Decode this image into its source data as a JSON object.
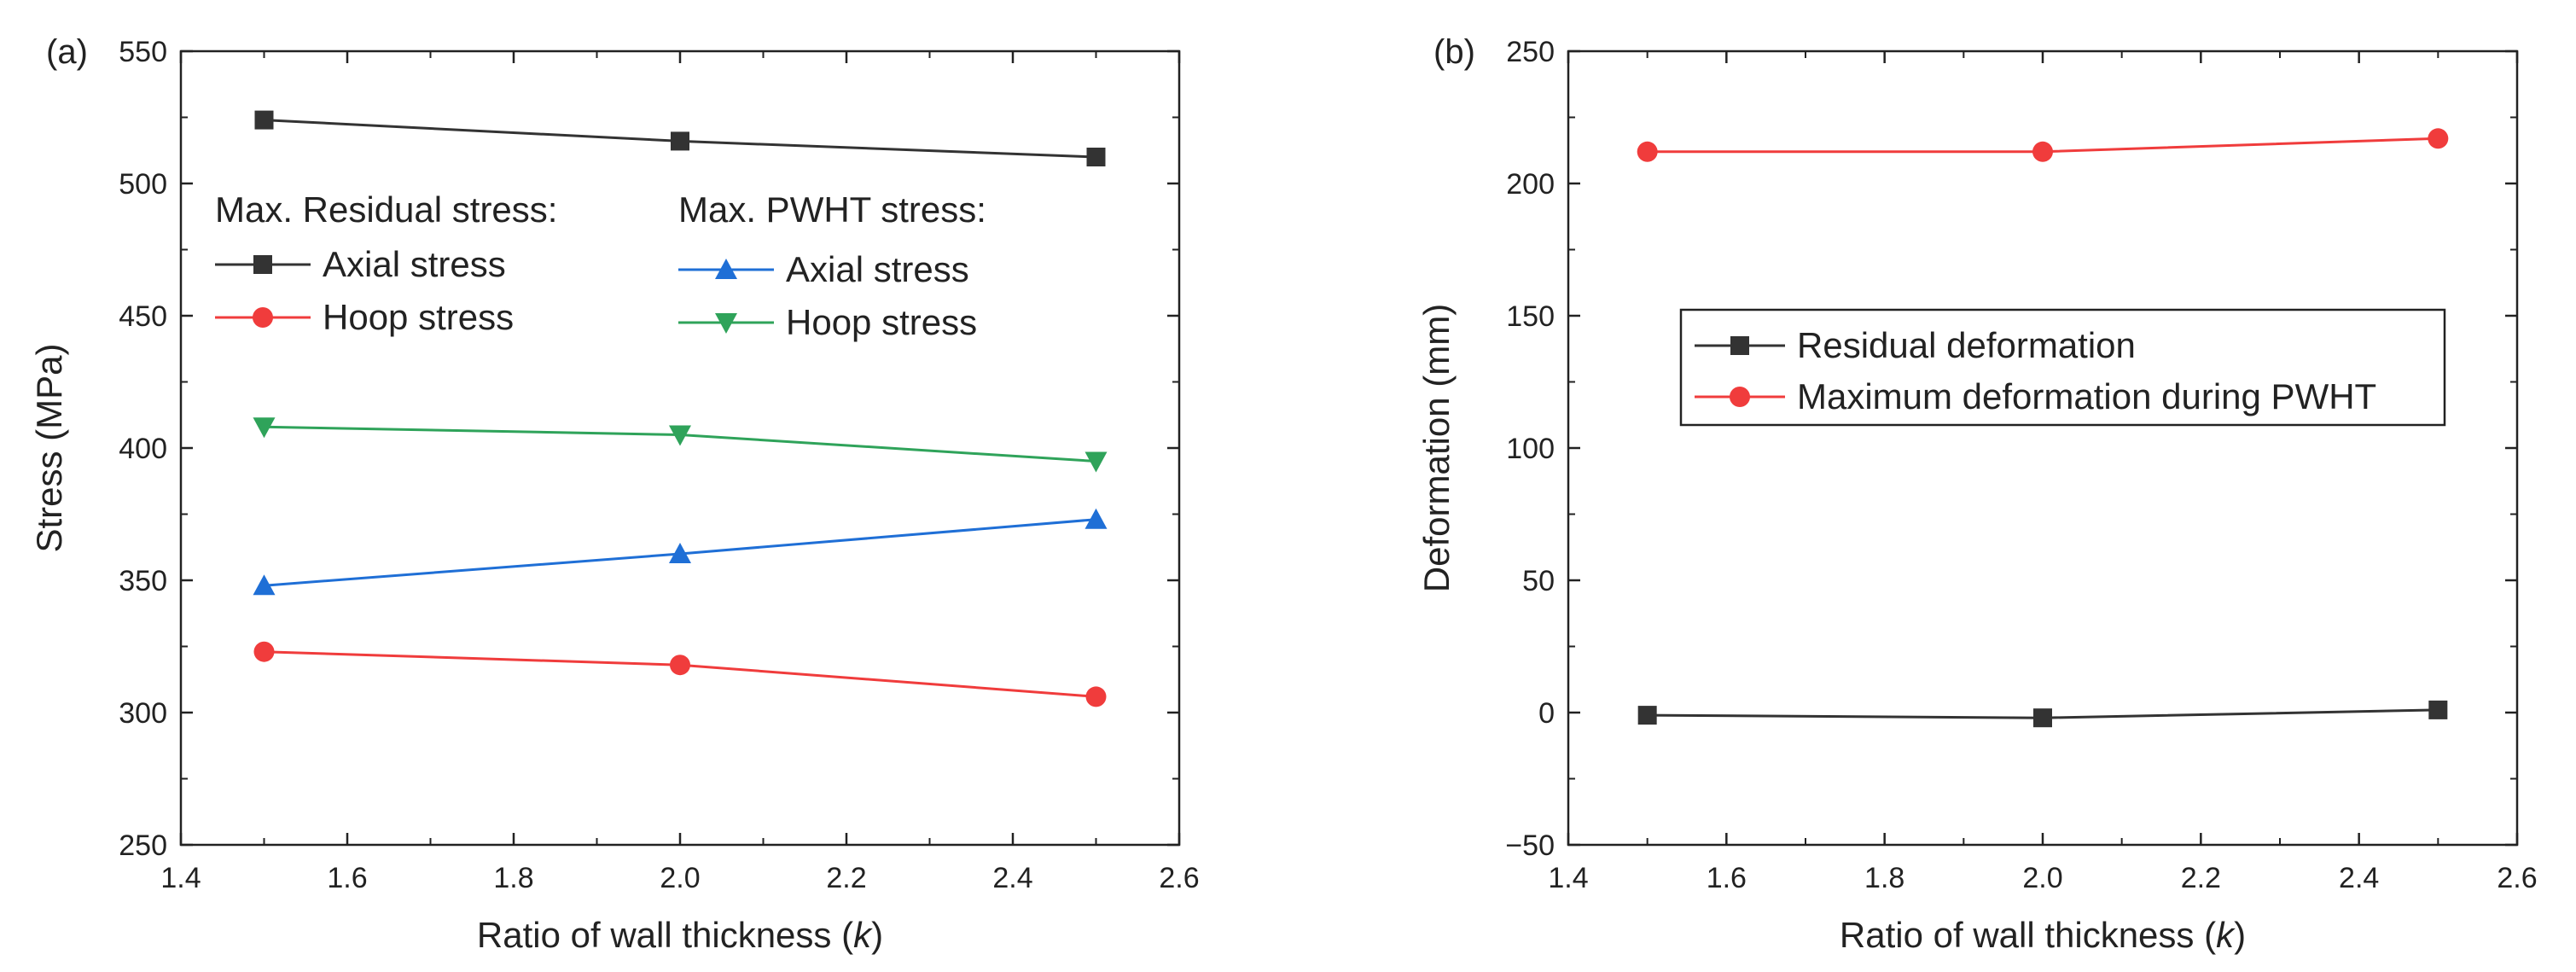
{
  "chart_data": [
    {
      "type": "line",
      "panel_label": "(a)",
      "xlabel_prefix": "Ratio of wall thickness (",
      "xlabel_var": "k",
      "xlabel_suffix": ")",
      "ylabel": "Stress (MPa)",
      "xlim": [
        1.4,
        2.6
      ],
      "ylim": [
        250,
        550
      ],
      "xticks": [
        1.4,
        1.6,
        1.8,
        2.0,
        2.2,
        2.4,
        2.6
      ],
      "xtick_labels": [
        "1.4",
        "1.6",
        "1.8",
        "2.0",
        "2.2",
        "2.4",
        "2.6"
      ],
      "yticks": [
        250,
        300,
        350,
        400,
        450,
        500,
        550
      ],
      "ytick_labels": [
        "250",
        "300",
        "350",
        "400",
        "450",
        "500",
        "550"
      ],
      "legend_groups": [
        {
          "title": "Max. Residual stress:",
          "series": [
            0,
            1
          ]
        },
        {
          "title": "Max. PWHT stress:",
          "series": [
            2,
            3
          ]
        }
      ],
      "series": [
        {
          "name": "Axial stress",
          "group": "Max. Residual stress",
          "color": "#333333",
          "marker": "square",
          "x": [
            1.5,
            2.0,
            2.5
          ],
          "y": [
            524,
            516,
            510
          ]
        },
        {
          "name": "Hoop stress",
          "group": "Max. Residual stress",
          "color": "#f03c3c",
          "marker": "circle",
          "x": [
            1.5,
            2.0,
            2.5
          ],
          "y": [
            323,
            318,
            306
          ]
        },
        {
          "name": "Axial stress",
          "group": "Max. PWHT stress",
          "color": "#1f6fd6",
          "marker": "triangle-up",
          "x": [
            1.5,
            2.0,
            2.5
          ],
          "y": [
            348,
            360,
            373
          ]
        },
        {
          "name": "Hoop stress",
          "group": "Max. PWHT stress",
          "color": "#2fa35a",
          "marker": "triangle-down",
          "x": [
            1.5,
            2.0,
            2.5
          ],
          "y": [
            408,
            405,
            395
          ]
        }
      ]
    },
    {
      "type": "line",
      "panel_label": "(b)",
      "xlabel_prefix": "Ratio of wall thickness (",
      "xlabel_var": "k",
      "xlabel_suffix": ")",
      "ylabel": "Deformation (mm)",
      "xlim": [
        1.4,
        2.6
      ],
      "ylim": [
        -50,
        250
      ],
      "xticks": [
        1.4,
        1.6,
        1.8,
        2.0,
        2.2,
        2.4,
        2.6
      ],
      "xtick_labels": [
        "1.4",
        "1.6",
        "1.8",
        "2.0",
        "2.2",
        "2.4",
        "2.6"
      ],
      "yticks": [
        -50,
        0,
        50,
        100,
        150,
        200,
        250
      ],
      "ytick_labels": [
        "−50",
        "0",
        "50",
        "100",
        "150",
        "200",
        "250"
      ],
      "legend_box": true,
      "series": [
        {
          "name": "Residual deformation",
          "color": "#333333",
          "marker": "square",
          "x": [
            1.5,
            2.0,
            2.5
          ],
          "y": [
            -1,
            -2,
            1
          ]
        },
        {
          "name": "Maximum deformation during PWHT",
          "color": "#f03c3c",
          "marker": "circle",
          "x": [
            1.5,
            2.0,
            2.5
          ],
          "y": [
            212,
            212,
            217
          ]
        }
      ]
    }
  ]
}
